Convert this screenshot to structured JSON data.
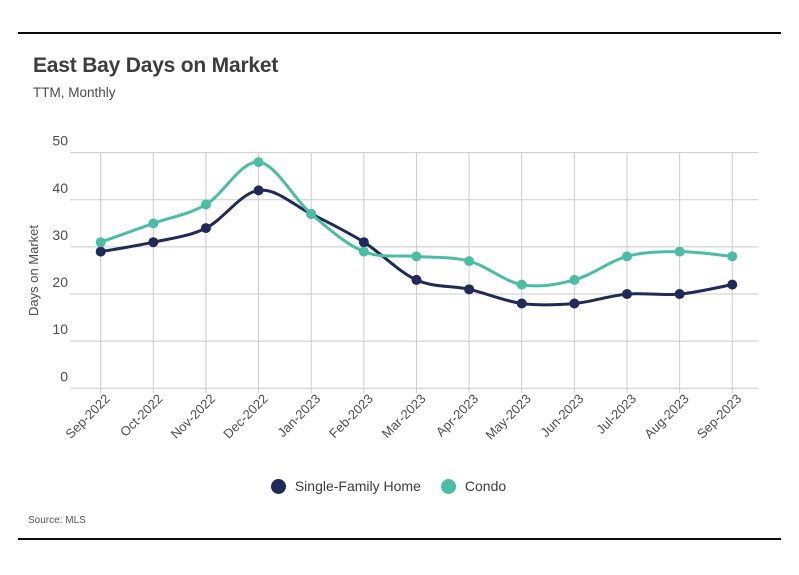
{
  "header": {
    "title": "East Bay Days on Market",
    "subtitle": "TTM, Monthly"
  },
  "source": {
    "text": "Source: MLS"
  },
  "colors": {
    "single_family": "#1F2A56",
    "condo": "#4CBDA5",
    "grid": "#CBCBCB",
    "axis_text": "#4D4D4D",
    "title_text": "#3C3C3C",
    "border": "#0B0B0B"
  },
  "chart_data": {
    "type": "line",
    "title": "East Bay Days on Market",
    "subtitle": "TTM, Monthly",
    "xlabel": "",
    "ylabel": "Days on Market",
    "ylim": [
      0,
      50
    ],
    "yticks": [
      0,
      10,
      20,
      30,
      40,
      50
    ],
    "grid": true,
    "legend_position": "bottom",
    "categories": [
      "Sep-2022",
      "Oct-2022",
      "Nov-2022",
      "Dec-2022",
      "Jan-2023",
      "Feb-2023",
      "Mar-2023",
      "Apr-2023",
      "May-2023",
      "Jun-2023",
      "Jul-2023",
      "Aug-2023",
      "Sep-2023"
    ],
    "series": [
      {
        "name": "Single-Family Home",
        "color": "#1F2A56",
        "values": [
          29,
          31,
          34,
          42,
          37,
          31,
          23,
          21,
          18,
          18,
          20,
          20,
          22
        ]
      },
      {
        "name": "Condo",
        "color": "#4CBDA5",
        "values": [
          31,
          35,
          39,
          48,
          37,
          29,
          28,
          27,
          22,
          23,
          28,
          29,
          28
        ]
      }
    ]
  }
}
